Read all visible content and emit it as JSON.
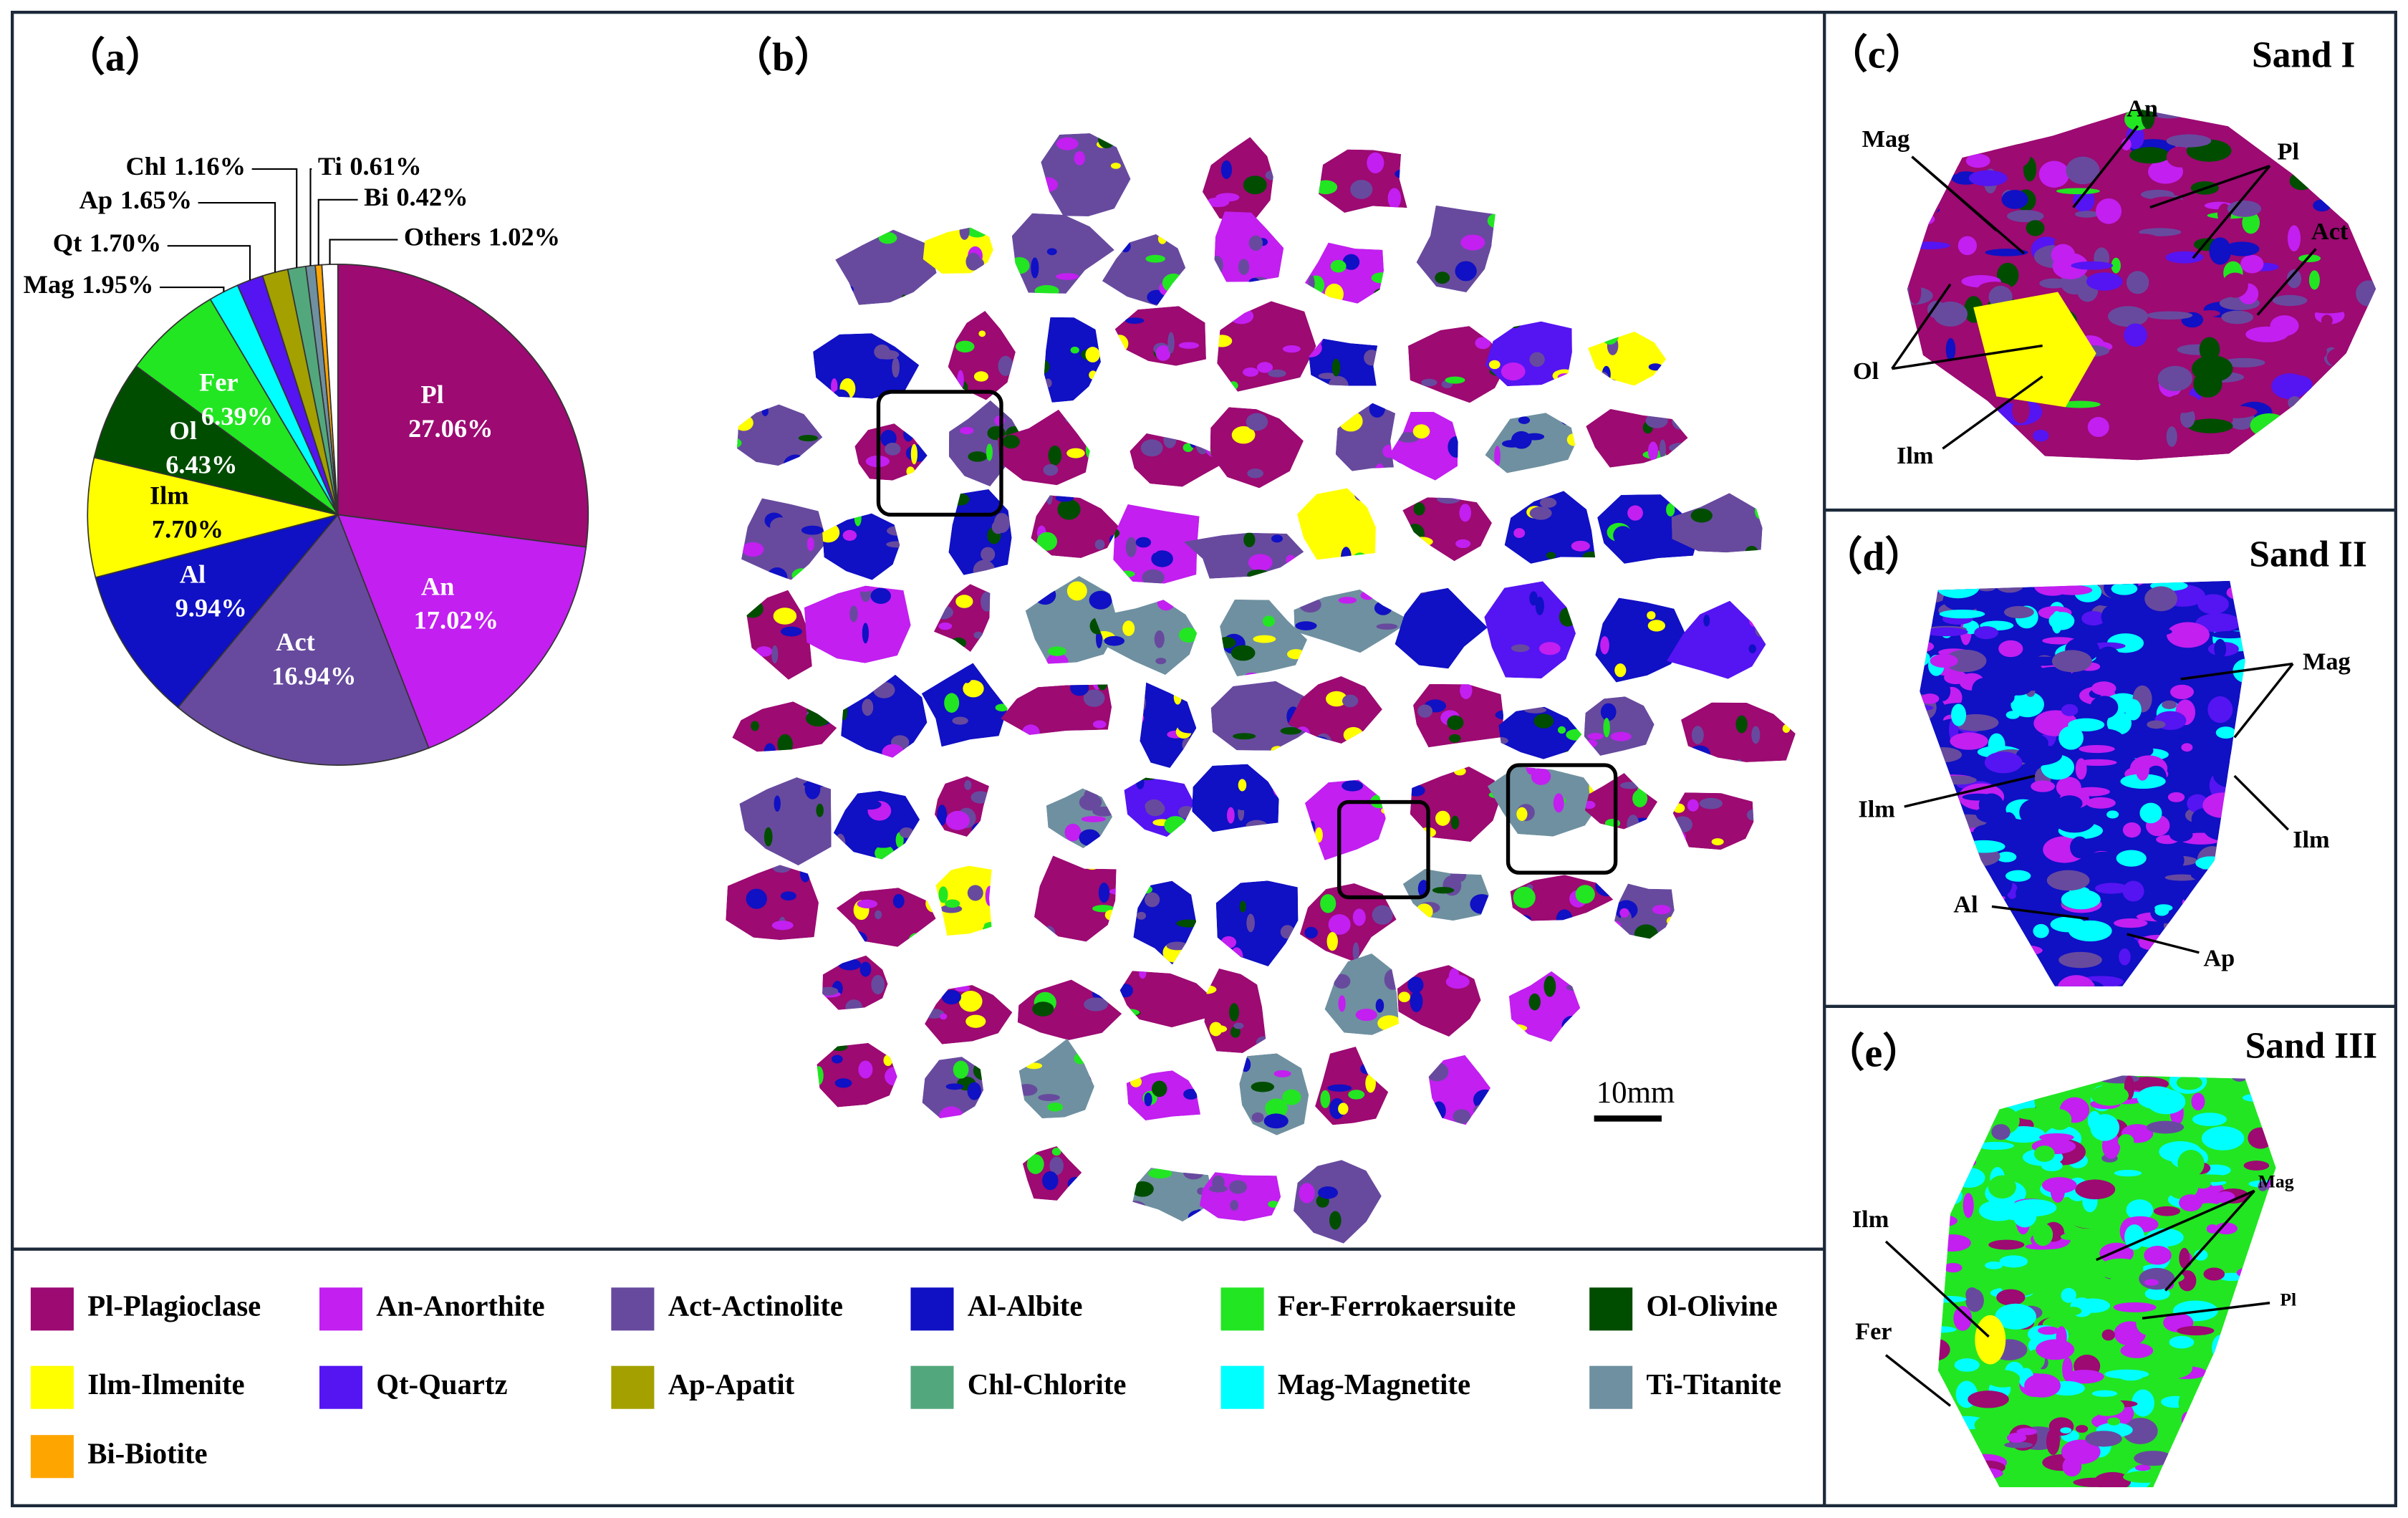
{
  "chart_data": {
    "type": "pie",
    "categories": [
      "Pl",
      "An",
      "Act",
      "Al",
      "Ilm",
      "Ol",
      "Fer",
      "Mag",
      "Qt",
      "Ap",
      "Chl",
      "Ti",
      "Bi",
      "Others"
    ],
    "values": [
      27.06,
      17.02,
      16.94,
      9.94,
      7.7,
      6.43,
      6.39,
      1.95,
      1.7,
      1.65,
      1.16,
      0.61,
      0.42,
      1.02
    ],
    "value_labels": [
      "27.06%",
      "17.02%",
      "16.94%",
      "9.94%",
      "7.70%",
      "6.43%",
      "6.39%",
      "1.95%",
      "1.70%",
      "1.65%",
      "1.16%",
      "0.61%",
      "0.42%",
      "1.02%"
    ],
    "colors": [
      "#9c0a72",
      "#c21ff0",
      "#674a9e",
      "#1010c4",
      "#ffff00",
      "#004d00",
      "#22e622",
      "#00ffff",
      "#5514f2",
      "#a3a000",
      "#52a87c",
      "#6f90a0",
      "#ffa500",
      "#ffffff"
    ]
  },
  "panels": {
    "a": {
      "tag": "（a）"
    },
    "b": {
      "tag": "（b）",
      "scale": "10mm"
    },
    "c": {
      "tag": "（c）",
      "title": "Sand I",
      "labels": [
        "Mag",
        "An",
        "Pl",
        "Act",
        "Ol",
        "Ilm"
      ]
    },
    "d": {
      "tag": "（d）",
      "title": "Sand II",
      "labels": [
        "Mag",
        "Ilm",
        "Ilm",
        "Al",
        "Ap"
      ]
    },
    "e": {
      "tag": "（e）",
      "title": "Sand III",
      "labels": [
        "Mag",
        "Pl",
        "Ilm",
        "Fer"
      ]
    }
  },
  "legend": [
    {
      "label": "Pl-Plagioclase",
      "color": "#9c0a72"
    },
    {
      "label": "An-Anorthite",
      "color": "#c21ff0"
    },
    {
      "label": "Act-Actinolite",
      "color": "#674a9e"
    },
    {
      "label": "Al-Albite",
      "color": "#1010c4"
    },
    {
      "label": "Fer-Ferrokaersuite",
      "color": "#22e622"
    },
    {
      "label": "Ol-Olivine",
      "color": "#004d00"
    },
    {
      "label": "Ilm-Ilmenite",
      "color": "#ffff00"
    },
    {
      "label": "Qt-Quartz",
      "color": "#5514f2"
    },
    {
      "label": "Ap-Apatit",
      "color": "#a3a000"
    },
    {
      "label": "Chl-Chlorite",
      "color": "#52a87c"
    },
    {
      "label": "Mag-Magnetite",
      "color": "#00ffff"
    },
    {
      "label": "Ti-Titanite",
      "color": "#6f90a0"
    },
    {
      "label": "Bi-Biotite",
      "color": "#ffa500"
    }
  ]
}
